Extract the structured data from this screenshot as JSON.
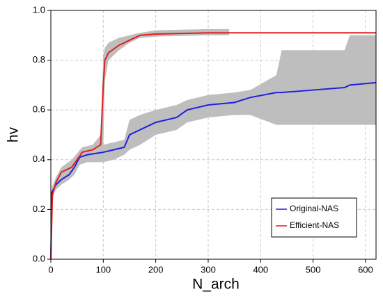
{
  "chart_data": {
    "type": "line",
    "xlabel": "N_arch",
    "ylabel": "hv",
    "xlim": [
      0,
      620
    ],
    "ylim": [
      0,
      1
    ],
    "xticks": [
      0,
      100,
      200,
      300,
      400,
      500,
      600
    ],
    "yticks": [
      {
        "value": 0,
        "label": "0.0"
      },
      0.2,
      0.4,
      0.6,
      0.8,
      {
        "value": 1,
        "label": "1.0"
      }
    ],
    "grid": true,
    "legend": "lower right",
    "band_color": "#bebebe",
    "series": [
      {
        "name": "Original-NAS",
        "color": "#1f1fe0",
        "x": [
          0,
          2,
          10,
          20,
          35,
          45,
          55,
          70,
          100,
          120,
          140,
          150,
          170,
          200,
          240,
          260,
          300,
          350,
          380,
          430,
          440,
          500,
          560,
          570,
          620
        ],
        "values": [
          0,
          0.27,
          0.3,
          0.32,
          0.34,
          0.37,
          0.41,
          0.42,
          0.43,
          0.44,
          0.45,
          0.5,
          0.52,
          0.55,
          0.57,
          0.6,
          0.62,
          0.63,
          0.65,
          0.67,
          0.67,
          0.68,
          0.69,
          0.7,
          0.71
        ],
        "band_upper": [
          0,
          0.29,
          0.33,
          0.35,
          0.37,
          0.4,
          0.44,
          0.45,
          0.46,
          0.47,
          0.48,
          0.56,
          0.58,
          0.6,
          0.62,
          0.64,
          0.66,
          0.67,
          0.68,
          0.74,
          0.84,
          0.84,
          0.84,
          0.9,
          0.9
        ],
        "band_lower": [
          0,
          0.25,
          0.28,
          0.3,
          0.32,
          0.34,
          0.38,
          0.39,
          0.39,
          0.4,
          0.42,
          0.44,
          0.46,
          0.5,
          0.52,
          0.55,
          0.57,
          0.58,
          0.58,
          0.54,
          0.54,
          0.54,
          0.54,
          0.54,
          0.54
        ]
      },
      {
        "name": "Efficient-NAS",
        "color": "#e01f1f",
        "x": [
          0,
          3,
          10,
          20,
          40,
          60,
          80,
          95,
          100,
          103,
          110,
          130,
          150,
          170,
          200,
          300,
          340,
          620
        ],
        "values": [
          0,
          0.26,
          0.31,
          0.35,
          0.37,
          0.43,
          0.44,
          0.46,
          0.7,
          0.8,
          0.83,
          0.86,
          0.88,
          0.9,
          0.905,
          0.91,
          0.91,
          0.91
        ],
        "band_upper": [
          0,
          0.28,
          0.33,
          0.37,
          0.4,
          0.45,
          0.46,
          0.5,
          0.82,
          0.85,
          0.87,
          0.89,
          0.9,
          0.91,
          0.92,
          0.925,
          0.925,
          null
        ],
        "band_lower": [
          0,
          0.24,
          0.29,
          0.33,
          0.35,
          0.4,
          0.42,
          0.43,
          0.46,
          0.72,
          0.8,
          0.84,
          0.87,
          0.89,
          0.895,
          0.9,
          0.9,
          null
        ]
      }
    ]
  }
}
